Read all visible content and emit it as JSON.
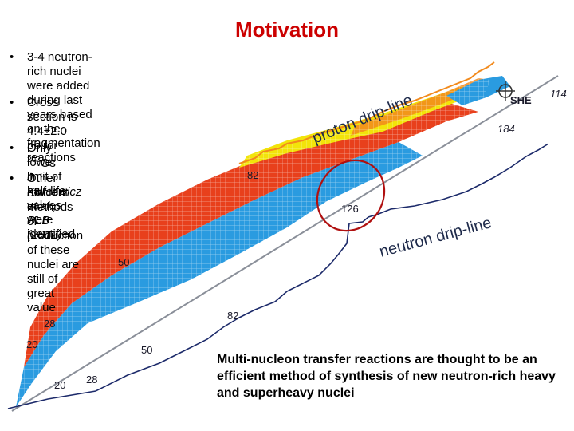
{
  "slide": {
    "title": "Motivation",
    "bullets": [
      {
        "symbol": "•",
        "lines": [
          "3-4 neutron-rich nuclei were added during last years based on the",
          "fragmentation reactions"
        ]
      },
      {
        "symbol": "•",
        "line1_pre": "Cross section is 4.4±2.0 pb for ",
        "line1_sup": "202",
        "line1_post": "Os",
        "line2": "J. Kurcewicz et al., PLB (2012)"
      },
      {
        "symbol": "•",
        "lines": [
          "Only lower limit of half-life values were identified"
        ]
      },
      {
        "symbol": "•",
        "lines": [
          "Other efficient methods of",
          "production of these nuclei are",
          "still of great value"
        ]
      }
    ],
    "caption": [
      "Multi-nucleon transfer reactions are thought to be an",
      "efficient method of synthesis of new neutron-rich heavy",
      "and superheavy nuclei"
    ]
  },
  "chart": {
    "proton_drip_line_label": "proton drip-line",
    "neutron_drip_line_label": "neutron drip-line",
    "she_label": "SHE",
    "magic_labels": {
      "n_184": "184",
      "z_114": "114",
      "n_126": "126",
      "z_82_upper": "82",
      "z_82_lower": "82",
      "z_50": "50",
      "n_50": "50",
      "z_28": "28",
      "n_28": "28",
      "z_20": "20",
      "n_20": "20"
    },
    "colors": {
      "stable_red": "#e8401c",
      "neutron_rich_blue": "#2a9be0",
      "proton_rich_yellow": "#f2e40a",
      "highlight_orange": "#f28a1c",
      "ellipse": "#b01010",
      "drip_line": "#1c2a6a"
    }
  }
}
